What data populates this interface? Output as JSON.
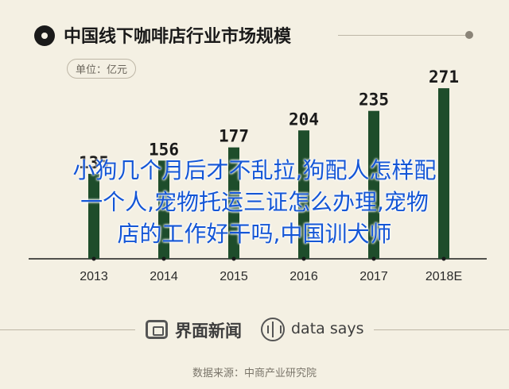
{
  "header": {
    "title": "中国线下咖啡店行业市场规模",
    "unit": "单位：亿元"
  },
  "chart_data": {
    "type": "bar",
    "categories": [
      "2013",
      "2014",
      "2015",
      "2016",
      "2017",
      "2018E"
    ],
    "values": [
      135,
      156,
      177,
      204,
      235,
      271
    ],
    "title": "中国线下咖啡店行业市场规模",
    "xlabel": "",
    "ylabel": "单位：亿元",
    "ylim": [
      0,
      280
    ],
    "bar_color": "#1e4d2b",
    "grid": false
  },
  "overlay_text": {
    "lines": [
      "小狗几个月后才不乱拉,狗配人怎样配",
      "一个人,宠物托运三证怎么办理,宠物",
      "店的工作好干吗,中国训犬师"
    ]
  },
  "footer": {
    "brand_name": "界面新闻",
    "partner_name": "data says",
    "source": "数据来源：中商产业研究院"
  }
}
